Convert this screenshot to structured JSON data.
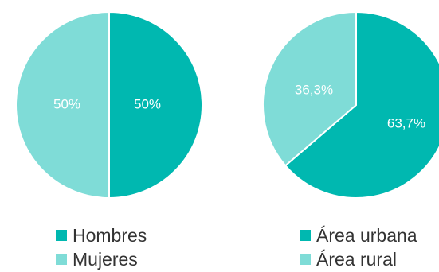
{
  "chart_data": [
    {
      "type": "pie",
      "title": "",
      "slices": [
        {
          "label": "Hombres",
          "value": 50,
          "value_label": "50%",
          "color": "#00b8b0"
        },
        {
          "label": "Mujeres",
          "value": 50,
          "value_label": "50%",
          "color": "#7fdcd7"
        }
      ],
      "legend_position": "bottom"
    },
    {
      "type": "pie",
      "title": "",
      "slices": [
        {
          "label": "Área urbana",
          "value": 63.7,
          "value_label": "63,7%",
          "color": "#00b8b0"
        },
        {
          "label": "Área rural",
          "value": 36.3,
          "value_label": "36,3%",
          "color": "#7fdcd7"
        }
      ],
      "legend_position": "bottom"
    }
  ]
}
